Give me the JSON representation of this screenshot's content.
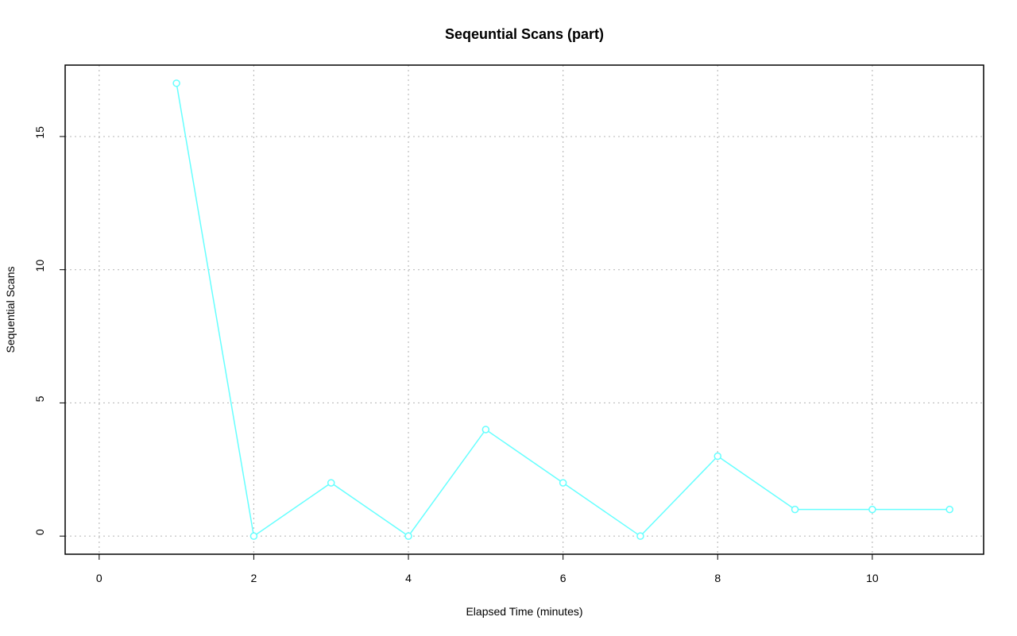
{
  "chart_data": {
    "type": "line",
    "title": "Seqeuntial Scans (part)",
    "x_label": "Elapsed Time (minutes)",
    "y_label": "Sequential Scans",
    "x": [
      1,
      2,
      3,
      4,
      5,
      6,
      7,
      8,
      9,
      10,
      11
    ],
    "series": [
      {
        "color": "#66ffff",
        "values": [
          17,
          0,
          2,
          0,
          4,
          2,
          0,
          3,
          1,
          1,
          1
        ]
      }
    ],
    "xlim": [
      -0.44,
      11.44
    ],
    "xticks": [
      0,
      2,
      4,
      6,
      8,
      10
    ],
    "ylim": [
      -0.68,
      17.68
    ],
    "yticks": [
      0,
      5,
      10,
      15
    ],
    "grid": true
  }
}
